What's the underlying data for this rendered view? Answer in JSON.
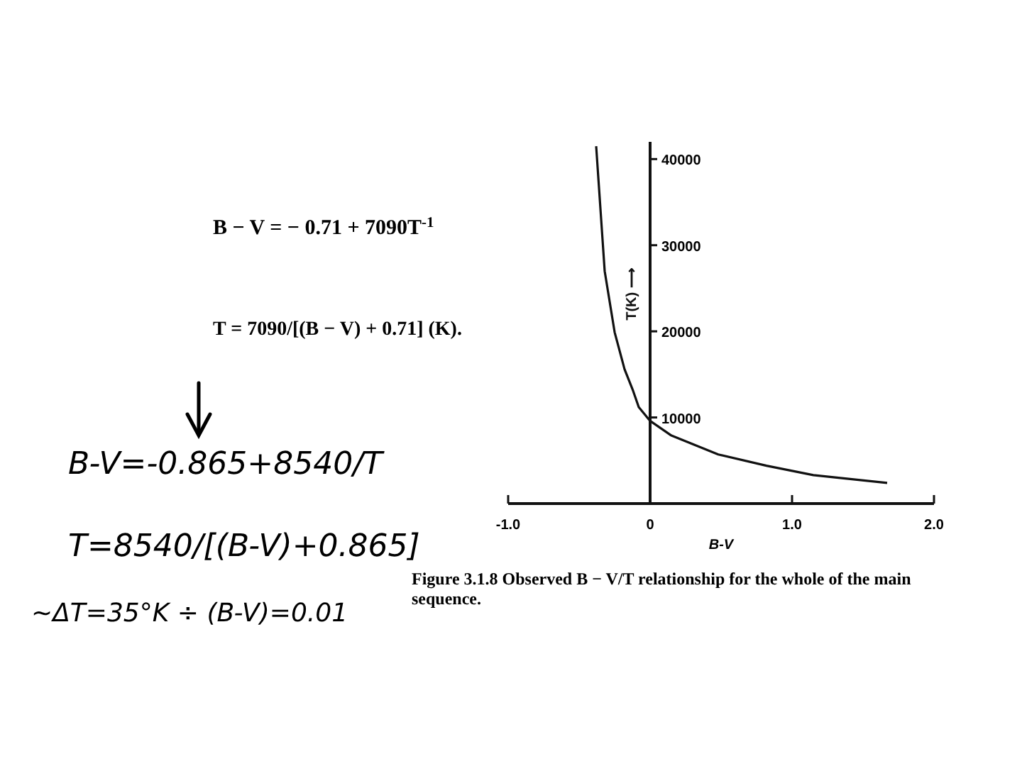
{
  "chart_data": {
    "type": "line",
    "xlabel": "B-V",
    "ylabel": "T(K) ⟶",
    "x": [
      -0.38,
      -0.32,
      -0.25,
      -0.18,
      -0.12,
      -0.08,
      0,
      0.15,
      0.48,
      0.82,
      1.15,
      1.67
    ],
    "series": [
      {
        "color": "#111111",
        "values": [
          41500,
          27000,
          19900,
          15600,
          13100,
          11200,
          9600,
          7900,
          5700,
          4400,
          3300,
          2400
        ]
      }
    ],
    "xlim": [
      -1,
      2
    ],
    "xticks": [
      {
        "value": -1,
        "label": "-1.0"
      },
      0,
      {
        "value": 1,
        "label": "1.0"
      },
      {
        "value": 2,
        "label": "2.0"
      }
    ],
    "ylim": [
      0,
      42000
    ],
    "yticks": [
      10000,
      20000,
      30000,
      40000
    ],
    "grid": false,
    "marker": "none",
    "line_style": "solid",
    "annotations": [
      "B − V = − 0.71 + 7090T$^{-1}$",
      "T = 7090/[(B − V) + 0.71]        (K).",
      "B-V=-0.865+8540/T",
      "T=8540/[(B-V)+0.865]",
      "~ΔT=35°K ÷ (B-V)=0.01",
      "Figure 3.1.8   Observed B − V/T relationship for the whole of the main",
      "sequence."
    ]
  }
}
